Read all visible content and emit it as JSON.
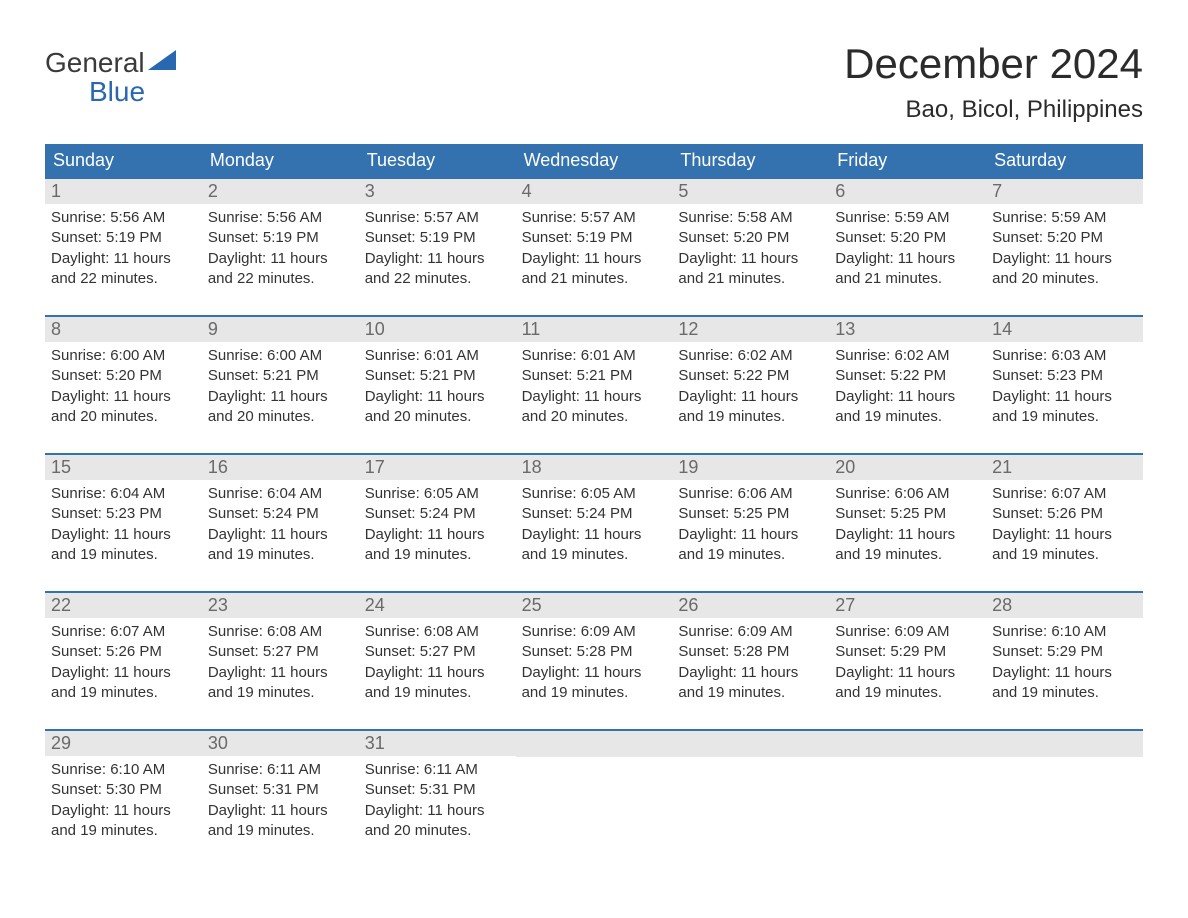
{
  "logo": {
    "text_general": "General",
    "text_blue": "Blue",
    "sail_color": "#2968b1"
  },
  "header": {
    "month_title": "December 2024",
    "location": "Bao, Bicol, Philippines"
  },
  "calendar": {
    "weekdays": [
      "Sunday",
      "Monday",
      "Tuesday",
      "Wednesday",
      "Thursday",
      "Friday",
      "Saturday"
    ],
    "header_bg": "#3372af",
    "header_text_color": "#ffffff",
    "row_border_color": "#3372af",
    "day_number_bg": "#e7e7e7",
    "day_number_color": "#6a6a6a",
    "weeks": [
      [
        {
          "day": "1",
          "sunrise": "Sunrise: 5:56 AM",
          "sunset": "Sunset: 5:19 PM",
          "daylight1": "Daylight: 11 hours",
          "daylight2": "and 22 minutes."
        },
        {
          "day": "2",
          "sunrise": "Sunrise: 5:56 AM",
          "sunset": "Sunset: 5:19 PM",
          "daylight1": "Daylight: 11 hours",
          "daylight2": "and 22 minutes."
        },
        {
          "day": "3",
          "sunrise": "Sunrise: 5:57 AM",
          "sunset": "Sunset: 5:19 PM",
          "daylight1": "Daylight: 11 hours",
          "daylight2": "and 22 minutes."
        },
        {
          "day": "4",
          "sunrise": "Sunrise: 5:57 AM",
          "sunset": "Sunset: 5:19 PM",
          "daylight1": "Daylight: 11 hours",
          "daylight2": "and 21 minutes."
        },
        {
          "day": "5",
          "sunrise": "Sunrise: 5:58 AM",
          "sunset": "Sunset: 5:20 PM",
          "daylight1": "Daylight: 11 hours",
          "daylight2": "and 21 minutes."
        },
        {
          "day": "6",
          "sunrise": "Sunrise: 5:59 AM",
          "sunset": "Sunset: 5:20 PM",
          "daylight1": "Daylight: 11 hours",
          "daylight2": "and 21 minutes."
        },
        {
          "day": "7",
          "sunrise": "Sunrise: 5:59 AM",
          "sunset": "Sunset: 5:20 PM",
          "daylight1": "Daylight: 11 hours",
          "daylight2": "and 20 minutes."
        }
      ],
      [
        {
          "day": "8",
          "sunrise": "Sunrise: 6:00 AM",
          "sunset": "Sunset: 5:20 PM",
          "daylight1": "Daylight: 11 hours",
          "daylight2": "and 20 minutes."
        },
        {
          "day": "9",
          "sunrise": "Sunrise: 6:00 AM",
          "sunset": "Sunset: 5:21 PM",
          "daylight1": "Daylight: 11 hours",
          "daylight2": "and 20 minutes."
        },
        {
          "day": "10",
          "sunrise": "Sunrise: 6:01 AM",
          "sunset": "Sunset: 5:21 PM",
          "daylight1": "Daylight: 11 hours",
          "daylight2": "and 20 minutes."
        },
        {
          "day": "11",
          "sunrise": "Sunrise: 6:01 AM",
          "sunset": "Sunset: 5:21 PM",
          "daylight1": "Daylight: 11 hours",
          "daylight2": "and 20 minutes."
        },
        {
          "day": "12",
          "sunrise": "Sunrise: 6:02 AM",
          "sunset": "Sunset: 5:22 PM",
          "daylight1": "Daylight: 11 hours",
          "daylight2": "and 19 minutes."
        },
        {
          "day": "13",
          "sunrise": "Sunrise: 6:02 AM",
          "sunset": "Sunset: 5:22 PM",
          "daylight1": "Daylight: 11 hours",
          "daylight2": "and 19 minutes."
        },
        {
          "day": "14",
          "sunrise": "Sunrise: 6:03 AM",
          "sunset": "Sunset: 5:23 PM",
          "daylight1": "Daylight: 11 hours",
          "daylight2": "and 19 minutes."
        }
      ],
      [
        {
          "day": "15",
          "sunrise": "Sunrise: 6:04 AM",
          "sunset": "Sunset: 5:23 PM",
          "daylight1": "Daylight: 11 hours",
          "daylight2": "and 19 minutes."
        },
        {
          "day": "16",
          "sunrise": "Sunrise: 6:04 AM",
          "sunset": "Sunset: 5:24 PM",
          "daylight1": "Daylight: 11 hours",
          "daylight2": "and 19 minutes."
        },
        {
          "day": "17",
          "sunrise": "Sunrise: 6:05 AM",
          "sunset": "Sunset: 5:24 PM",
          "daylight1": "Daylight: 11 hours",
          "daylight2": "and 19 minutes."
        },
        {
          "day": "18",
          "sunrise": "Sunrise: 6:05 AM",
          "sunset": "Sunset: 5:24 PM",
          "daylight1": "Daylight: 11 hours",
          "daylight2": "and 19 minutes."
        },
        {
          "day": "19",
          "sunrise": "Sunrise: 6:06 AM",
          "sunset": "Sunset: 5:25 PM",
          "daylight1": "Daylight: 11 hours",
          "daylight2": "and 19 minutes."
        },
        {
          "day": "20",
          "sunrise": "Sunrise: 6:06 AM",
          "sunset": "Sunset: 5:25 PM",
          "daylight1": "Daylight: 11 hours",
          "daylight2": "and 19 minutes."
        },
        {
          "day": "21",
          "sunrise": "Sunrise: 6:07 AM",
          "sunset": "Sunset: 5:26 PM",
          "daylight1": "Daylight: 11 hours",
          "daylight2": "and 19 minutes."
        }
      ],
      [
        {
          "day": "22",
          "sunrise": "Sunrise: 6:07 AM",
          "sunset": "Sunset: 5:26 PM",
          "daylight1": "Daylight: 11 hours",
          "daylight2": "and 19 minutes."
        },
        {
          "day": "23",
          "sunrise": "Sunrise: 6:08 AM",
          "sunset": "Sunset: 5:27 PM",
          "daylight1": "Daylight: 11 hours",
          "daylight2": "and 19 minutes."
        },
        {
          "day": "24",
          "sunrise": "Sunrise: 6:08 AM",
          "sunset": "Sunset: 5:27 PM",
          "daylight1": "Daylight: 11 hours",
          "daylight2": "and 19 minutes."
        },
        {
          "day": "25",
          "sunrise": "Sunrise: 6:09 AM",
          "sunset": "Sunset: 5:28 PM",
          "daylight1": "Daylight: 11 hours",
          "daylight2": "and 19 minutes."
        },
        {
          "day": "26",
          "sunrise": "Sunrise: 6:09 AM",
          "sunset": "Sunset: 5:28 PM",
          "daylight1": "Daylight: 11 hours",
          "daylight2": "and 19 minutes."
        },
        {
          "day": "27",
          "sunrise": "Sunrise: 6:09 AM",
          "sunset": "Sunset: 5:29 PM",
          "daylight1": "Daylight: 11 hours",
          "daylight2": "and 19 minutes."
        },
        {
          "day": "28",
          "sunrise": "Sunrise: 6:10 AM",
          "sunset": "Sunset: 5:29 PM",
          "daylight1": "Daylight: 11 hours",
          "daylight2": "and 19 minutes."
        }
      ],
      [
        {
          "day": "29",
          "sunrise": "Sunrise: 6:10 AM",
          "sunset": "Sunset: 5:30 PM",
          "daylight1": "Daylight: 11 hours",
          "daylight2": "and 19 minutes."
        },
        {
          "day": "30",
          "sunrise": "Sunrise: 6:11 AM",
          "sunset": "Sunset: 5:31 PM",
          "daylight1": "Daylight: 11 hours",
          "daylight2": "and 19 minutes."
        },
        {
          "day": "31",
          "sunrise": "Sunrise: 6:11 AM",
          "sunset": "Sunset: 5:31 PM",
          "daylight1": "Daylight: 11 hours",
          "daylight2": "and 20 minutes."
        },
        null,
        null,
        null,
        null
      ]
    ]
  }
}
